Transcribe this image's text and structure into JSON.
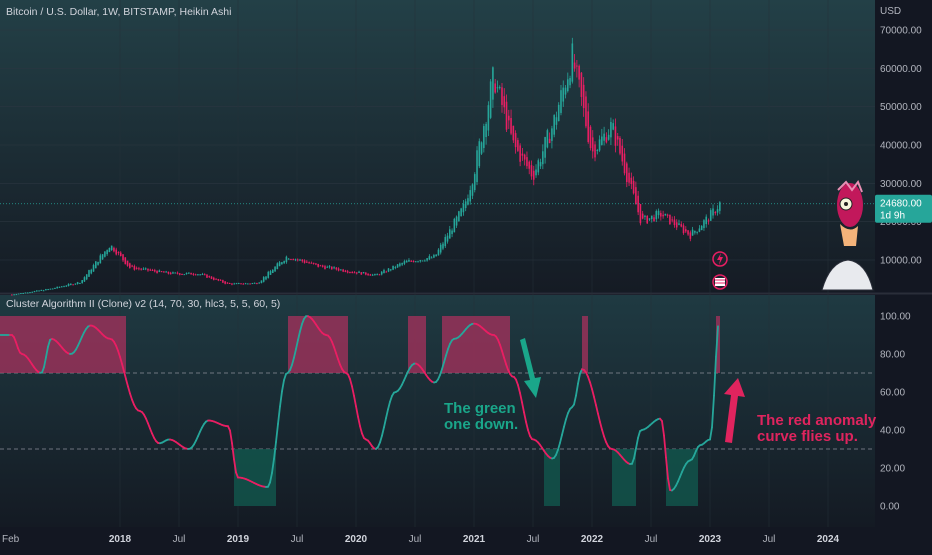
{
  "header": {
    "symbol_title": "Bitcoin / U.S. Dollar, 1W, BITSTAMP, Heikin Ashi",
    "currency": "USD"
  },
  "price_scale": {
    "labels": [
      "70000.00",
      "60000.00",
      "50000.00",
      "40000.00",
      "30000.00",
      "20000.00",
      "10000.00"
    ],
    "last_price": "24680.00",
    "countdown": "1d 9h"
  },
  "indicator": {
    "title": "Cluster Algorithm II (Clone) v2 (14, 70, 30, hlc3, 5, 5, 60, 5)",
    "labels": [
      "100.00",
      "80.00",
      "60.00",
      "40.00",
      "20.00",
      "0.00"
    ],
    "upper_level": 70,
    "lower_level": 30
  },
  "time_axis": {
    "labels": [
      "Feb",
      "2018",
      "Jul",
      "2019",
      "Jul",
      "2020",
      "Jul",
      "2021",
      "Jul",
      "2022",
      "Jul",
      "2023",
      "Jul",
      "2024"
    ]
  },
  "annotations": {
    "green_text": [
      "The green",
      "one down."
    ],
    "red_text": [
      "The red anomaly",
      "curve flies up."
    ]
  },
  "colors": {
    "background": "#131722",
    "up": "#26a69a",
    "down": "#e91e63",
    "overbought_zone": "#a8325e",
    "oversold_zone": "#12584d",
    "green_annotation": "#1aa68a",
    "red_annotation": "#e0245e"
  },
  "chart_data": [
    {
      "type": "candlestick",
      "title": "Bitcoin / U.S. Dollar, 1W, BITSTAMP, Heikin Ashi",
      "ylabel": "USD",
      "ylim": [
        0,
        70000
      ],
      "x": [
        "2017-02",
        "2017-06",
        "2017-09",
        "2017-12",
        "2018-02",
        "2018-06",
        "2018-09",
        "2018-12",
        "2019-03",
        "2019-06",
        "2019-09",
        "2019-12",
        "2020-03",
        "2020-06",
        "2020-09",
        "2020-12",
        "2021-01",
        "2021-03",
        "2021-05",
        "2021-07",
        "2021-09",
        "2021-11",
        "2022-01",
        "2022-03",
        "2022-06",
        "2022-08",
        "2022-11",
        "2023-01",
        "2023-02"
      ],
      "close": [
        1000,
        2500,
        4300,
        14000,
        8000,
        6500,
        6400,
        3700,
        4000,
        11000,
        8500,
        7200,
        6000,
        9500,
        10800,
        24000,
        33000,
        58000,
        40000,
        32000,
        45000,
        63000,
        38000,
        45000,
        20000,
        22000,
        16500,
        21500,
        24680
      ]
    },
    {
      "type": "line",
      "title": "Cluster Algorithm II (Clone) v2 (14, 70, 30, hlc3, 5, 5, 60, 5)",
      "ylim": [
        0,
        100
      ],
      "reference_lines": [
        70,
        30
      ],
      "x": [
        "2017-02",
        "2017-03",
        "2017-05",
        "2017-06",
        "2017-08",
        "2017-10",
        "2017-12",
        "2018-03",
        "2018-05",
        "2018-06",
        "2018-08",
        "2018-10",
        "2018-12",
        "2019-01",
        "2019-04",
        "2019-06",
        "2019-08",
        "2019-10",
        "2019-12",
        "2020-02",
        "2020-03",
        "2020-05",
        "2020-07",
        "2020-09",
        "2020-11",
        "2021-01",
        "2021-03",
        "2021-05",
        "2021-07",
        "2021-09",
        "2021-11",
        "2021-12",
        "2022-03",
        "2022-05",
        "2022-06",
        "2022-08",
        "2022-09",
        "2022-11",
        "2022-12",
        "2023-01",
        "2023-02"
      ],
      "values": [
        90,
        80,
        70,
        88,
        80,
        95,
        88,
        50,
        33,
        35,
        30,
        45,
        42,
        15,
        10,
        70,
        100,
        90,
        70,
        35,
        30,
        60,
        75,
        65,
        88,
        96,
        90,
        68,
        35,
        25,
        52,
        72,
        30,
        22,
        40,
        46,
        8,
        24,
        32,
        35,
        100
      ]
    }
  ]
}
